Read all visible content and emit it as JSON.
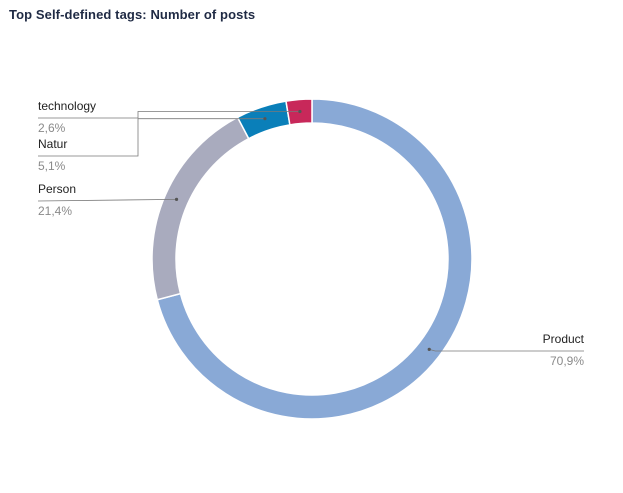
{
  "title": "Top Self-defined tags: Number of posts",
  "chart_data": {
    "type": "pie",
    "variant": "donut",
    "title": "Top Self-defined tags: Number of posts",
    "slices": [
      {
        "label": "Product",
        "value": 70.9,
        "value_label": "70,9%",
        "color": "#89a9d6"
      },
      {
        "label": "Person",
        "value": 21.4,
        "value_label": "21,4%",
        "color": "#a9abbe"
      },
      {
        "label": "Natur",
        "value": 5.1,
        "value_label": "5,1%",
        "color": "#0a7fb9"
      },
      {
        "label": "technology",
        "value": 2.6,
        "value_label": "2,6%",
        "color": "#c8285a"
      }
    ],
    "legend": "none (leader-line labels)"
  }
}
